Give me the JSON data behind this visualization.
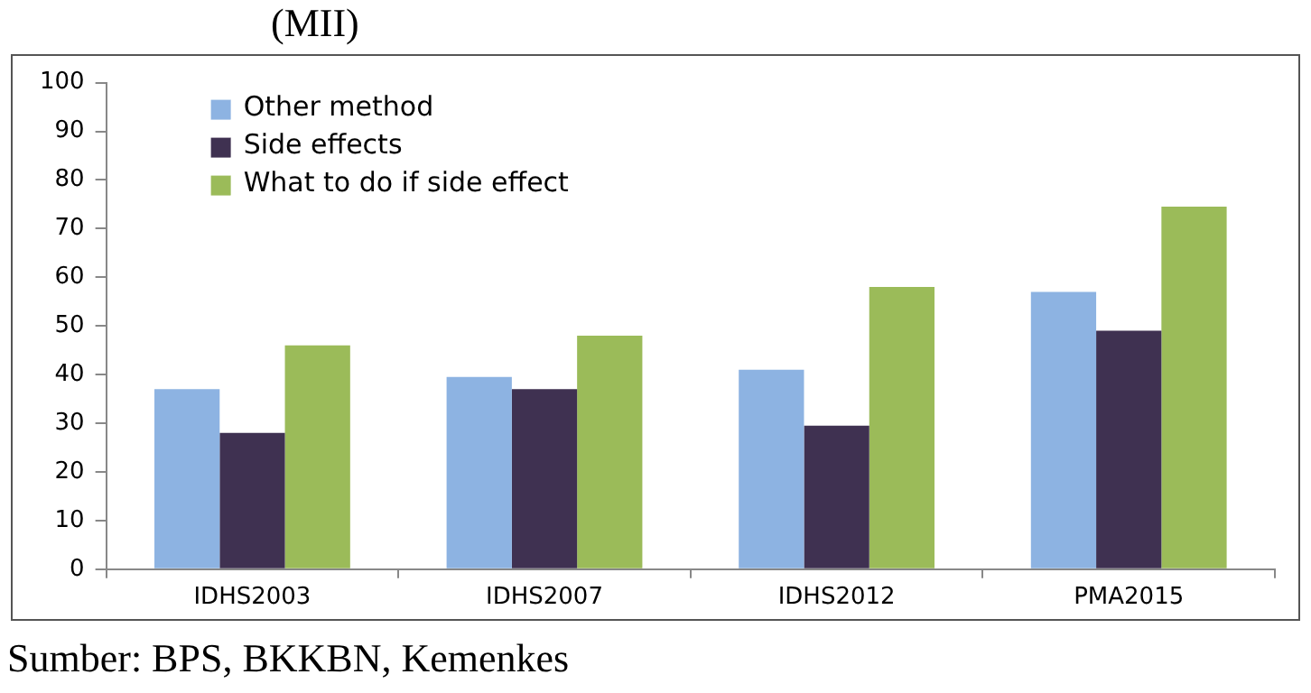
{
  "chart_data": {
    "type": "bar",
    "title": "(MII)",
    "annotations": [
      "Sumber: BPS, BKKBN, Kemenkes"
    ],
    "categories": [
      "IDHS2003",
      "IDHS2007",
      "IDHS2012",
      "PMA2015"
    ],
    "series": [
      {
        "name": "Other method",
        "color": "#8db3e2",
        "values": [
          37,
          39.5,
          41,
          57
        ]
      },
      {
        "name": "Side effects",
        "color": "#3f3151",
        "values": [
          28,
          37,
          29.5,
          49
        ]
      },
      {
        "name": "What to do if side effect",
        "color": "#9bbb59",
        "values": [
          46,
          48,
          58,
          74.5
        ]
      }
    ],
    "ylim": [
      0,
      100
    ],
    "yticks": [
      0,
      10,
      20,
      30,
      40,
      50,
      60,
      70,
      80,
      90,
      100
    ],
    "grid": false,
    "legend": "top left"
  }
}
